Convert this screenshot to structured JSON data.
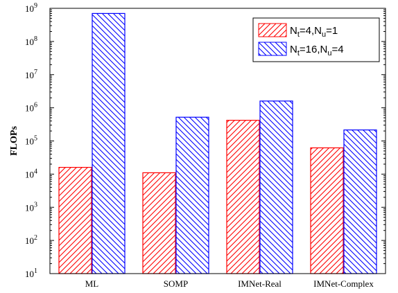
{
  "chart_data": {
    "type": "bar",
    "title": "",
    "xlabel": "",
    "ylabel": "FLOPs",
    "yscale": "log",
    "ylim": [
      10,
      1000000000
    ],
    "y_ticks": [
      {
        "value": 10,
        "base": "10",
        "exp": "1"
      },
      {
        "value": 100,
        "base": "10",
        "exp": "2"
      },
      {
        "value": 1000,
        "base": "10",
        "exp": "3"
      },
      {
        "value": 10000,
        "base": "10",
        "exp": "4"
      },
      {
        "value": 100000,
        "base": "10",
        "exp": "5"
      },
      {
        "value": 1000000,
        "base": "10",
        "exp": "6"
      },
      {
        "value": 10000000,
        "base": "10",
        "exp": "7"
      },
      {
        "value": 100000000,
        "base": "10",
        "exp": "8"
      },
      {
        "value": 1000000000,
        "base": "10",
        "exp": "9"
      }
    ],
    "categories": [
      "ML",
      "SOMP",
      "IMNet-Real",
      "IMNet-Complex"
    ],
    "series": [
      {
        "legend": {
          "parts": [
            "N",
            "t",
            "=4,N",
            "u",
            "=1"
          ]
        },
        "color": "#ff0000",
        "hatch": "forward",
        "values": [
          16000,
          11000,
          420000,
          62000
        ]
      },
      {
        "legend": {
          "parts": [
            "N",
            "t",
            "=16,N",
            "u",
            "=4"
          ]
        },
        "color": "#0000ff",
        "hatch": "backward",
        "values": [
          700000000,
          520000,
          1600000,
          215000
        ]
      }
    ],
    "grid": false,
    "legend_position": "top-right"
  }
}
